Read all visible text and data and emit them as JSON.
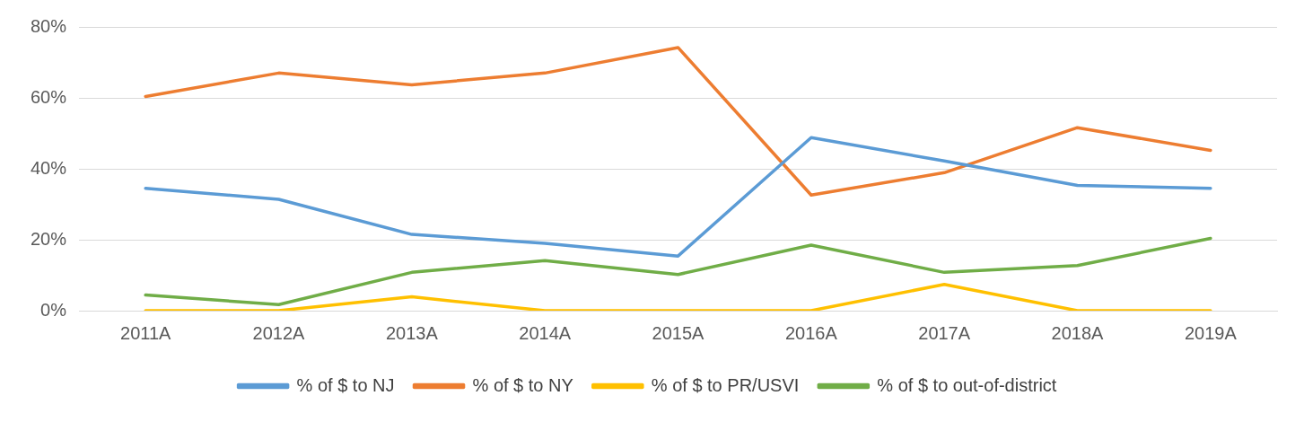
{
  "chart_data": {
    "type": "line",
    "categories": [
      "2011A",
      "2012A",
      "2013A",
      "2014A",
      "2015A",
      "2016A",
      "2017A",
      "2018A",
      "2019A"
    ],
    "series": [
      {
        "name": "% of $ to NJ",
        "color": "#5b9bd5",
        "values": [
          34.5,
          31.4,
          21.5,
          19,
          15.4,
          48.8,
          42.2,
          35.3,
          34.5
        ]
      },
      {
        "name": "% of $ to NY",
        "color": "#ed7d31",
        "values": [
          60.4,
          67,
          63.7,
          67,
          74.2,
          32.6,
          38.9,
          51.6,
          45.2
        ]
      },
      {
        "name": "% of $ to PR/USVI",
        "color": "#ffc000",
        "values": [
          0,
          0,
          3.9,
          0,
          0,
          0,
          7.4,
          0,
          0
        ]
      },
      {
        "name": "% of $ to out-of-district",
        "color": "#70ad47",
        "values": [
          4.4,
          1.7,
          10.8,
          14.1,
          10.2,
          18.5,
          10.8,
          12.7,
          20.4
        ]
      }
    ],
    "ylim": [
      0,
      80
    ],
    "yticks": [
      {
        "value": 0,
        "label": "0%"
      },
      {
        "value": 20,
        "label": "20%"
      },
      {
        "value": 40,
        "label": "40%"
      },
      {
        "value": 60,
        "label": "60%"
      },
      {
        "value": 80,
        "label": "80%"
      }
    ],
    "grid": "y",
    "legend": "bottom",
    "marker": "none",
    "line_style": "solid"
  }
}
